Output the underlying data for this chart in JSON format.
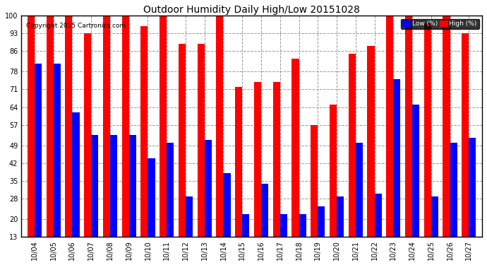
{
  "title": "Outdoor Humidity Daily High/Low 20151028",
  "copyright": "Copyright 2015 Cartronics.com",
  "legend_low": "Low (%)",
  "legend_high": "High (%)",
  "low_color": "#0000ff",
  "high_color": "#ff0000",
  "background_color": "#ffffff",
  "plot_bg_color": "#ffffff",
  "ylim": [
    13,
    100
  ],
  "yticks": [
    13,
    20,
    28,
    35,
    42,
    49,
    57,
    64,
    71,
    78,
    86,
    93,
    100
  ],
  "dates": [
    "10/04",
    "10/05",
    "10/06",
    "10/07",
    "10/08",
    "10/09",
    "10/10",
    "10/11",
    "10/12",
    "10/13",
    "10/14",
    "10/15",
    "10/16",
    "10/17",
    "10/18",
    "10/19",
    "10/20",
    "10/21",
    "10/22",
    "10/23",
    "10/24",
    "10/25",
    "10/26",
    "10/27"
  ],
  "high": [
    100,
    100,
    100,
    93,
    100,
    100,
    96,
    100,
    89,
    89,
    100,
    72,
    74,
    74,
    83,
    57,
    65,
    85,
    88,
    100,
    100,
    97,
    100,
    93
  ],
  "low": [
    81,
    81,
    62,
    53,
    53,
    53,
    44,
    50,
    29,
    51,
    38,
    22,
    34,
    22,
    22,
    25,
    29,
    50,
    30,
    75,
    65,
    29,
    50,
    52
  ],
  "bar_width": 0.38,
  "figwidth": 6.9,
  "figheight": 3.75,
  "title_fontsize": 10,
  "tick_fontsize": 7,
  "copyright_fontsize": 6.5,
  "legend_fontsize": 6.5
}
